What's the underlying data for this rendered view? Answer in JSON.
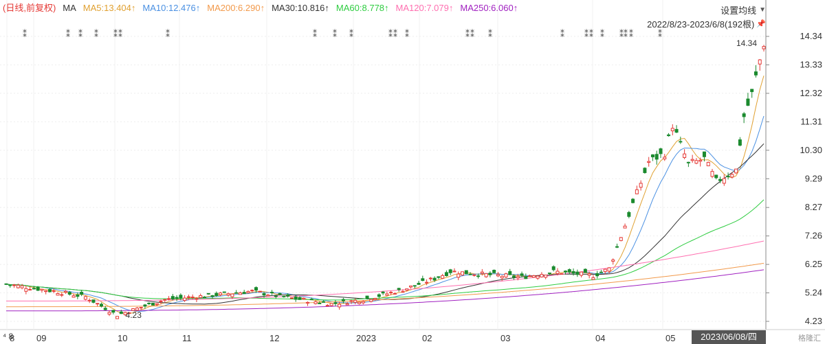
{
  "legend": {
    "mode": "(日线,前复权)",
    "ma_label": "MA",
    "items": [
      {
        "text": "MA5:13.404↑",
        "color": "#e0a030"
      },
      {
        "text": "MA10:12.476↑",
        "color": "#4a90e2"
      },
      {
        "text": "MA200:6.290↑",
        "color": "#f2994a"
      },
      {
        "text": "MA30:10.816↑",
        "color": "#333333"
      },
      {
        "text": "MA60:8.778↑",
        "color": "#2ecc40"
      },
      {
        "text": "MA120:7.079↑",
        "color": "#ff6fb0"
      },
      {
        "text": "MA250:6.060↑",
        "color": "#a020c0"
      }
    ]
  },
  "settings_label": "设置均线",
  "range_label": "2022/8/23-2023/6/8(192根)",
  "date_badge": "2023/06/08/四",
  "nav_left": "⁴ 8",
  "watermark": "格隆汇",
  "chart_data": {
    "type": "candlestick",
    "y_ticks": [
      "14.34",
      "13.33",
      "12.32",
      "11.31",
      "10.30",
      "9.29",
      "8.27",
      "7.26",
      "6.25",
      "5.24",
      "4.23"
    ],
    "ylim": [
      4.23,
      14.34
    ],
    "x_labels": [
      "8",
      "09",
      "10",
      "11",
      "12",
      "2023",
      "02",
      "03",
      "04",
      "05"
    ],
    "high_label": "14.34",
    "low_label": "4.23",
    "ma_series": [
      {
        "name": "MA5",
        "color": "#e0a030"
      },
      {
        "name": "MA10",
        "color": "#4a90e2"
      },
      {
        "name": "MA30",
        "color": "#333333"
      },
      {
        "name": "MA60",
        "color": "#2ecc40"
      },
      {
        "name": "MA120",
        "color": "#ff6fb0"
      },
      {
        "name": "MA200",
        "color": "#f2994a"
      },
      {
        "name": "MA250",
        "color": "#a020c0"
      }
    ],
    "marker_symbol": "⁑",
    "up_color": "#e53935",
    "down_color": "#1b8a2e"
  }
}
